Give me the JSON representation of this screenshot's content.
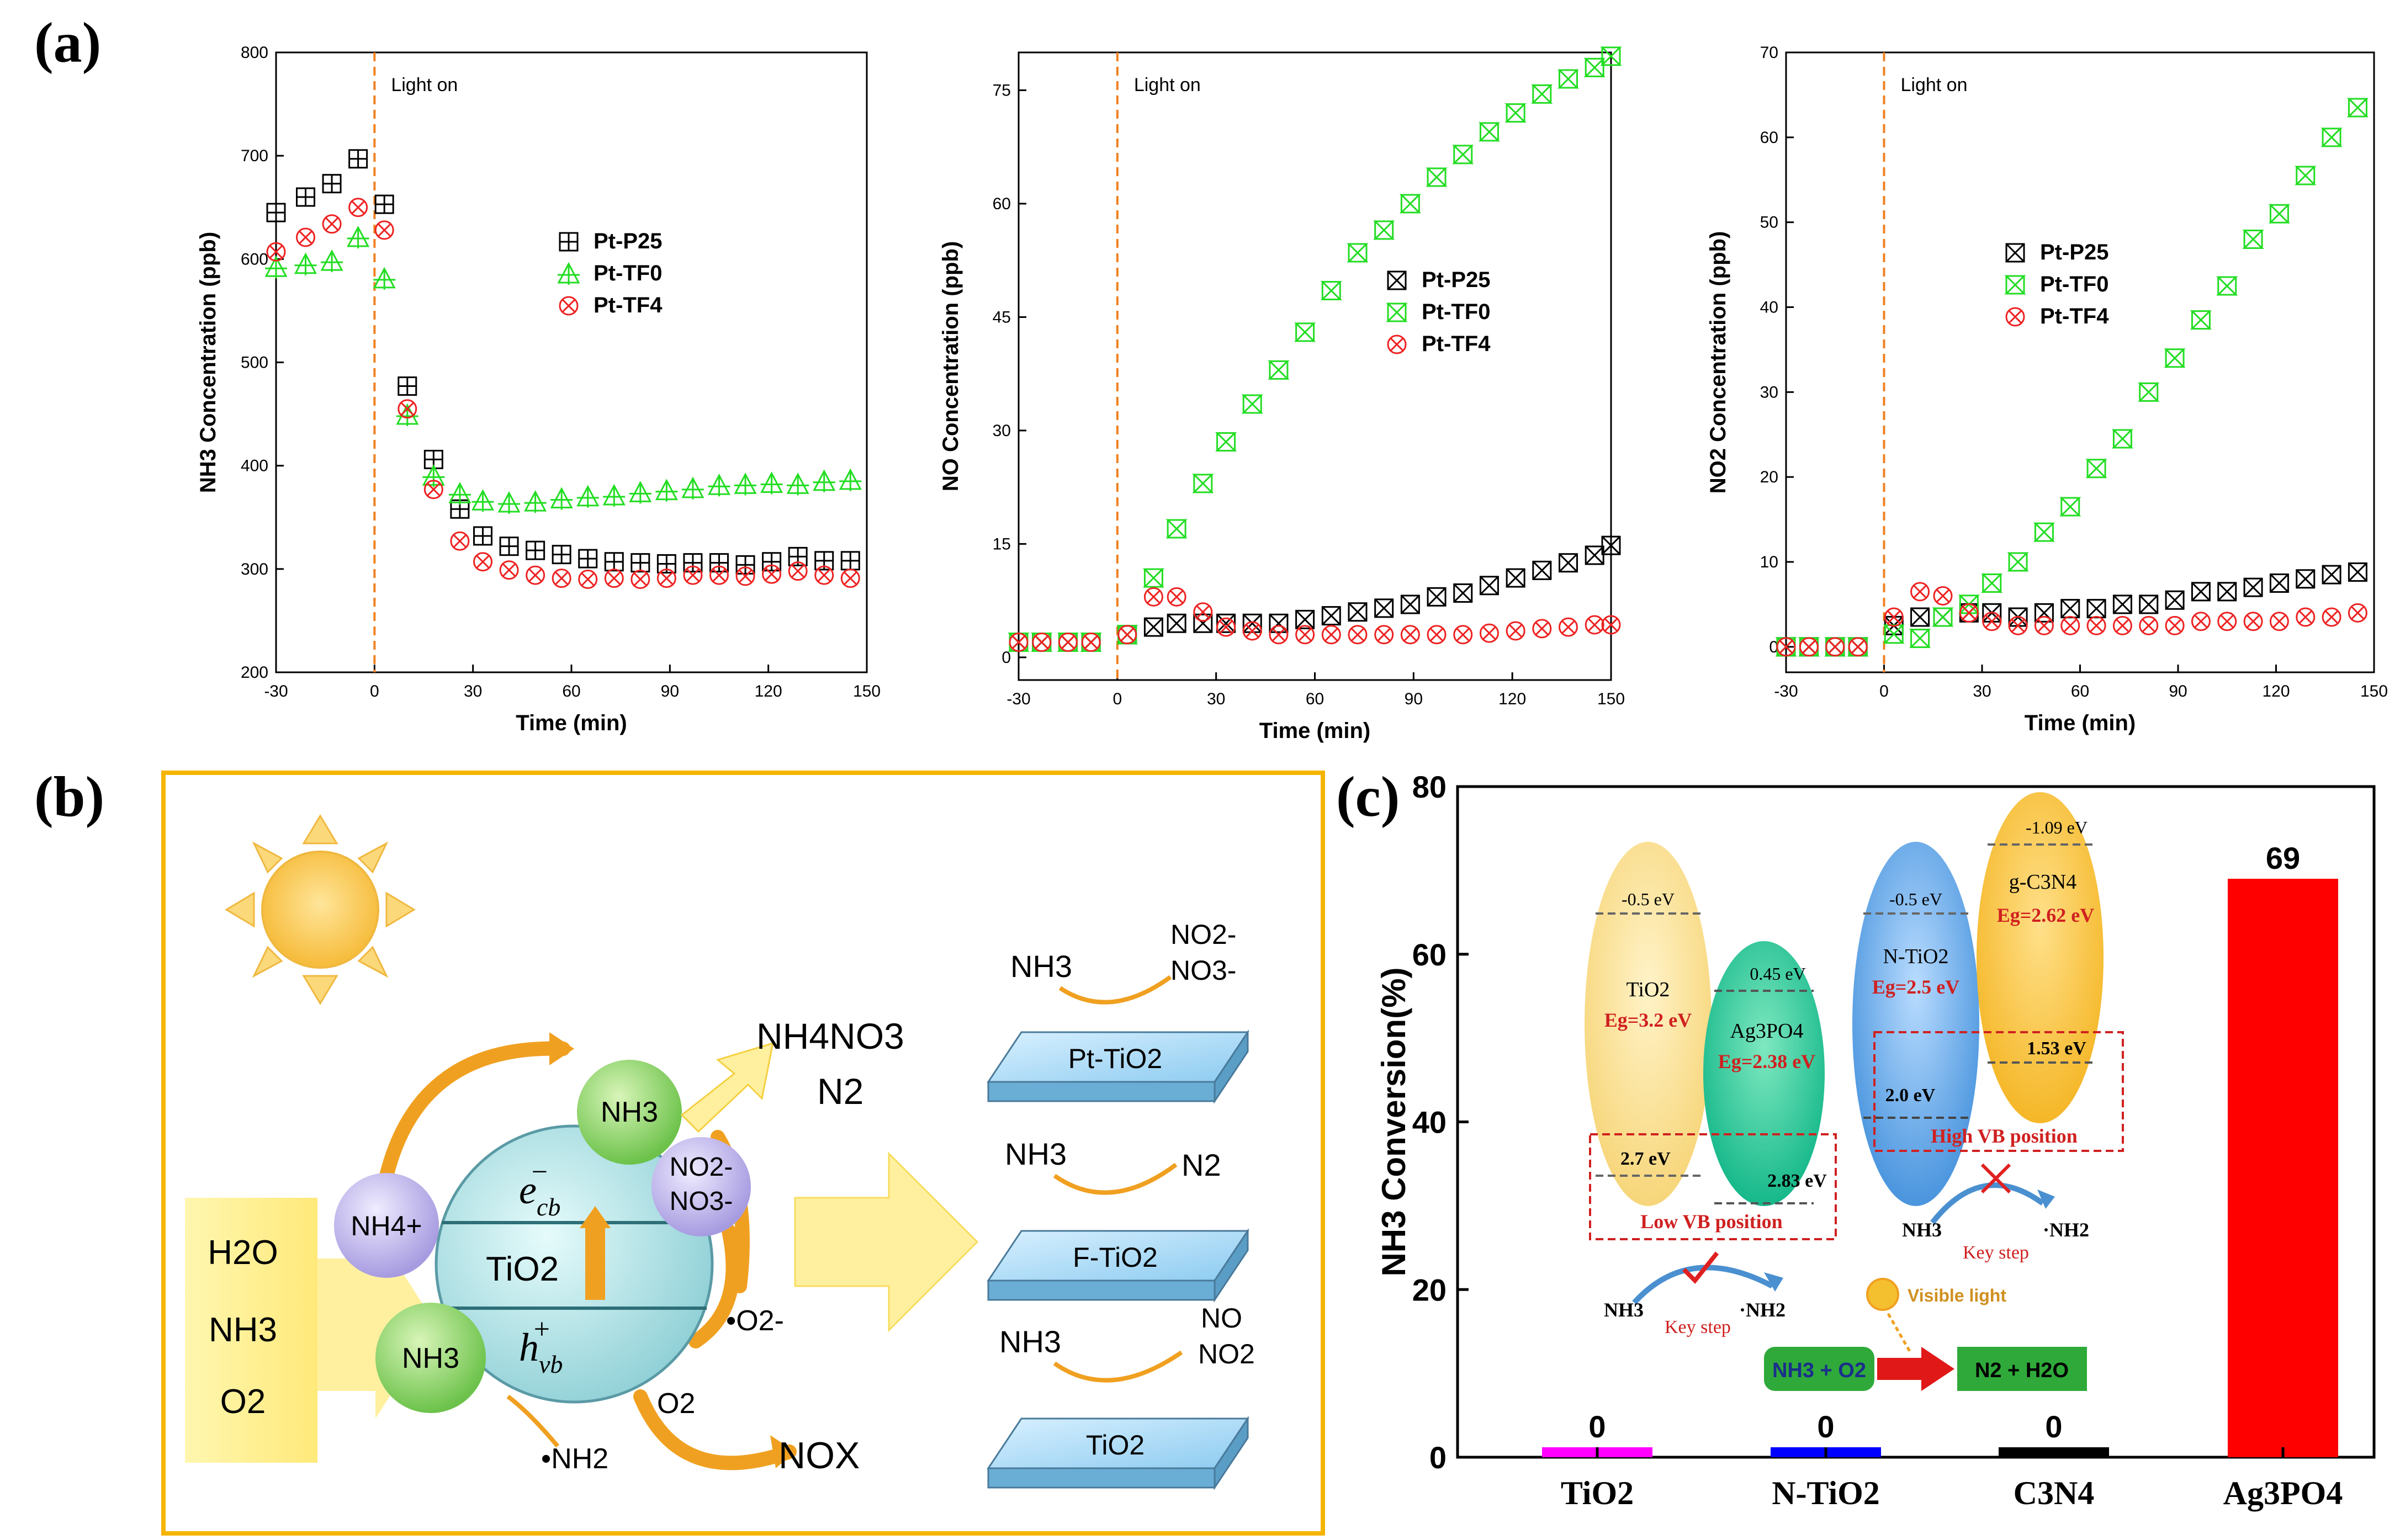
{
  "panel_labels": [
    "(a)",
    "(b)",
    "(c)"
  ],
  "colors": {
    "p25": "#000000",
    "tf0": "#22dd22",
    "tf4": "#ee2222",
    "light_line": "#f08020",
    "box_border": "#f5b400",
    "tio2_bar": "#ff00ff",
    "ntio2_bar": "#0000ff",
    "c3n4_bar": "#000000",
    "ag3po4_bar": "#ff0000"
  },
  "chart_data": [
    {
      "type": "scatter",
      "title": "",
      "xlabel": "Time (min)",
      "ylabel": "NH3 Concentration (ppb)",
      "xlim": [
        -30,
        150
      ],
      "ylim": [
        200,
        800
      ],
      "xticks": [
        "-30",
        "0",
        "30",
        "60",
        "90",
        "120",
        "150"
      ],
      "yticks": [
        "200",
        "300",
        "400",
        "500",
        "600",
        "700",
        "800"
      ],
      "annotation": "Light on",
      "x": [
        -30,
        -21,
        -13,
        -5,
        3,
        10,
        18,
        26,
        33,
        41,
        49,
        57,
        65,
        73,
        81,
        89,
        97,
        105,
        113,
        121,
        129,
        137,
        145
      ],
      "series": [
        {
          "name": "Pt-P25",
          "marker": "boxplus",
          "values": [
            645,
            660,
            673,
            697,
            653,
            477,
            406,
            358,
            332,
            322,
            318,
            314,
            310,
            307,
            306,
            305,
            306,
            306,
            304,
            307,
            312,
            308,
            308
          ]
        },
        {
          "name": "Pt-TF0",
          "marker": "triplus",
          "values": [
            592,
            595,
            598,
            621,
            581,
            449,
            390,
            373,
            366,
            364,
            365,
            368,
            370,
            371,
            374,
            376,
            378,
            381,
            382,
            383,
            382,
            385,
            386
          ]
        },
        {
          "name": "Pt-TF4",
          "marker": "circlex",
          "values": [
            607,
            621,
            634,
            650,
            628,
            455,
            377,
            327,
            307,
            299,
            294,
            291,
            290,
            291,
            290,
            291,
            294,
            294,
            293,
            295,
            298,
            294,
            291
          ]
        }
      ]
    },
    {
      "type": "scatter",
      "title": "",
      "xlabel": "Time (min)",
      "ylabel": "NO Concentration (ppb)",
      "xlim": [
        -30,
        150
      ],
      "ylim": [
        -3,
        80
      ],
      "xticks": [
        "-30",
        "0",
        "30",
        "60",
        "90",
        "120",
        "150"
      ],
      "yticks": [
        "0",
        "15",
        "30",
        "45",
        "60",
        "75"
      ],
      "annotation": "Light on",
      "x": [
        -30,
        -23,
        -15,
        -8,
        3,
        11,
        18,
        26,
        33,
        41,
        49,
        57,
        65,
        73,
        81,
        89,
        97,
        105,
        113,
        121,
        129,
        137,
        145,
        150
      ],
      "series": [
        {
          "name": "Pt-P25",
          "marker": "boxx",
          "values": [
            2,
            2,
            2,
            2,
            3,
            4,
            4.5,
            4.5,
            4.5,
            4.5,
            4.5,
            5,
            5.5,
            6,
            6.5,
            7,
            8,
            8.5,
            9.5,
            10.5,
            11.5,
            12.5,
            13.5,
            14.8
          ]
        },
        {
          "name": "Pt-TF0",
          "marker": "hourglass",
          "values": [
            2,
            2,
            2,
            2,
            3,
            10.5,
            17,
            23,
            28.5,
            33.5,
            38,
            43,
            48.5,
            53.5,
            56.5,
            60,
            63.5,
            66.5,
            69.5,
            72,
            74.5,
            76.5,
            78,
            79.5
          ]
        },
        {
          "name": "Pt-TF4",
          "marker": "circlex",
          "values": [
            2,
            2,
            2,
            2,
            3,
            8,
            8,
            6,
            4,
            3.5,
            3,
            3,
            3,
            3,
            3,
            3,
            3,
            3,
            3.2,
            3.5,
            3.8,
            4,
            4.3,
            4.3
          ]
        }
      ]
    },
    {
      "type": "scatter",
      "title": "",
      "xlabel": "Time (min)",
      "ylabel": "NO2 Concentration (ppb)",
      "xlim": [
        -30,
        150
      ],
      "ylim": [
        -3,
        70
      ],
      "xticks": [
        "-30",
        "0",
        "30",
        "60",
        "90",
        "120",
        "150"
      ],
      "yticks": [
        "0",
        "10",
        "20",
        "30",
        "40",
        "50",
        "60",
        "70"
      ],
      "annotation": "Light on",
      "x": [
        -30,
        -23,
        -15,
        -8,
        3,
        11,
        18,
        26,
        33,
        41,
        49,
        57,
        65,
        73,
        81,
        89,
        97,
        105,
        113,
        121,
        129,
        137,
        145
      ],
      "series": [
        {
          "name": "Pt-P25",
          "marker": "boxx",
          "values": [
            0,
            0,
            0,
            0,
            2.5,
            3.5,
            3.5,
            4,
            4,
            3.5,
            4,
            4.5,
            4.5,
            5,
            5,
            5.5,
            6.5,
            6.5,
            7,
            7.5,
            8,
            8.5,
            8.8
          ]
        },
        {
          "name": "Pt-TF0",
          "marker": "hourglass",
          "values": [
            0,
            0,
            0,
            0,
            1.5,
            1,
            3.5,
            5,
            7.5,
            10,
            13.5,
            16.5,
            21,
            24.5,
            30,
            34,
            38.5,
            42.5,
            48,
            51,
            55.5,
            60,
            63.5
          ]
        },
        {
          "name": "Pt-TF4",
          "marker": "circlex",
          "values": [
            0,
            0,
            0,
            0,
            3.5,
            6.5,
            6,
            4,
            3,
            2.5,
            2.5,
            2.5,
            2.5,
            2.5,
            2.5,
            2.5,
            3,
            3,
            3,
            3,
            3.5,
            3.5,
            4
          ]
        }
      ]
    },
    {
      "type": "bar",
      "title": "",
      "xlabel": "",
      "ylabel": "NH3 Conversion(%)",
      "ylim": [
        0,
        80
      ],
      "yticks": [
        "0",
        "20",
        "40",
        "60",
        "80"
      ],
      "categories": [
        "TiO2",
        "N-TiO2",
        "C3N4",
        "Ag3PO4"
      ],
      "values": [
        0,
        0,
        0,
        69
      ],
      "data_labels": [
        "0",
        "0",
        "0",
        "69"
      ]
    }
  ],
  "schematic_b": {
    "reactants": [
      "H2O",
      "NH3",
      "O2"
    ],
    "center_label": "TiO2",
    "electron": "e",
    "electron_sub": "cb",
    "electron_sup": "−",
    "hole": "h",
    "hole_sub": "vb",
    "hole_sup": "+",
    "nh4": "NH4+",
    "nh3_top": "NH3",
    "nh3_bottom": "NH3",
    "no2_no3": [
      "NO2-",
      "NO3-"
    ],
    "products_top": [
      "NH4NO3",
      "N2"
    ],
    "o2_radical": "•O2-",
    "o2": "O2",
    "nh2": "•NH2",
    "nox": "NOX",
    "plates": [
      {
        "catalyst": "Pt-TiO2",
        "reactant": "NH3",
        "products": [
          "NO2-",
          "NO3-"
        ]
      },
      {
        "catalyst": "F-TiO2",
        "reactant": "NH3",
        "products": [
          "N2"
        ]
      },
      {
        "catalyst": "TiO2",
        "reactant": "NH3",
        "products": [
          "NO",
          "NO2"
        ]
      }
    ]
  },
  "inset_c": {
    "tio2": {
      "name": "TiO2",
      "cb": "-0.5 eV",
      "eg": "Eg=3.2 eV",
      "vb": "2.7 eV"
    },
    "ag3po4": {
      "name": "Ag3PO4",
      "cb": "0.45 eV",
      "eg": "Eg=2.38 eV",
      "vb": "2.83 eV"
    },
    "ntio2": {
      "name": "N-TiO2",
      "cb": "-0.5 eV",
      "eg": "Eg=2.5 eV",
      "vb": "2.0 eV"
    },
    "gc3n4": {
      "name": "g-C3N4",
      "cb": "-1.09 eV",
      "eg": "Eg=2.62 eV",
      "vb": "1.53 eV"
    },
    "low_vb": "Low VB position",
    "high_vb": "High VB position",
    "key_step_left": "Key step",
    "key_step_right": "Key step",
    "nh3_left": "NH3",
    "nh2_left": "·NH2",
    "nh3_right": "NH3",
    "nh2_right": "·NH2",
    "visible_light": "Visible light",
    "reaction_left": "NH3 + O2",
    "reaction_right": "N2 + H2O"
  }
}
